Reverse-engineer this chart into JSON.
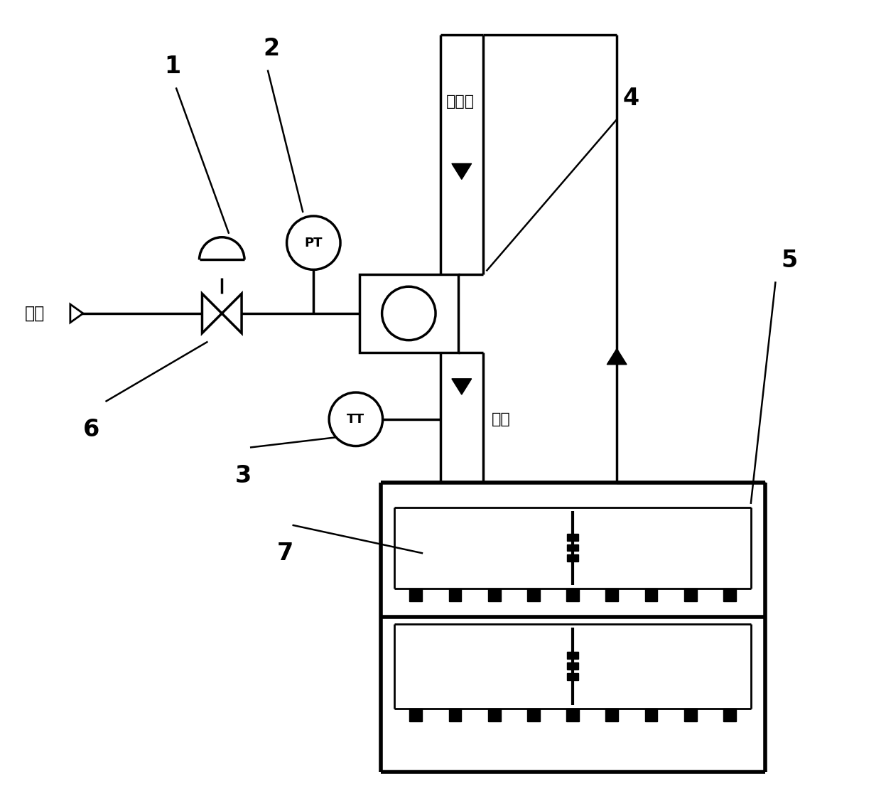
{
  "bg_color": "#ffffff",
  "line_color": "#000000",
  "lw": 2.5,
  "fig_width": 12.4,
  "fig_height": 11.34,
  "steam_text": "蒸汽",
  "circ_text": "循环风",
  "hot_text": "热风",
  "pt_text": "PT",
  "tt_text": "TT",
  "labels": [
    "1",
    "2",
    "3",
    "4",
    "5",
    "6",
    "7"
  ]
}
